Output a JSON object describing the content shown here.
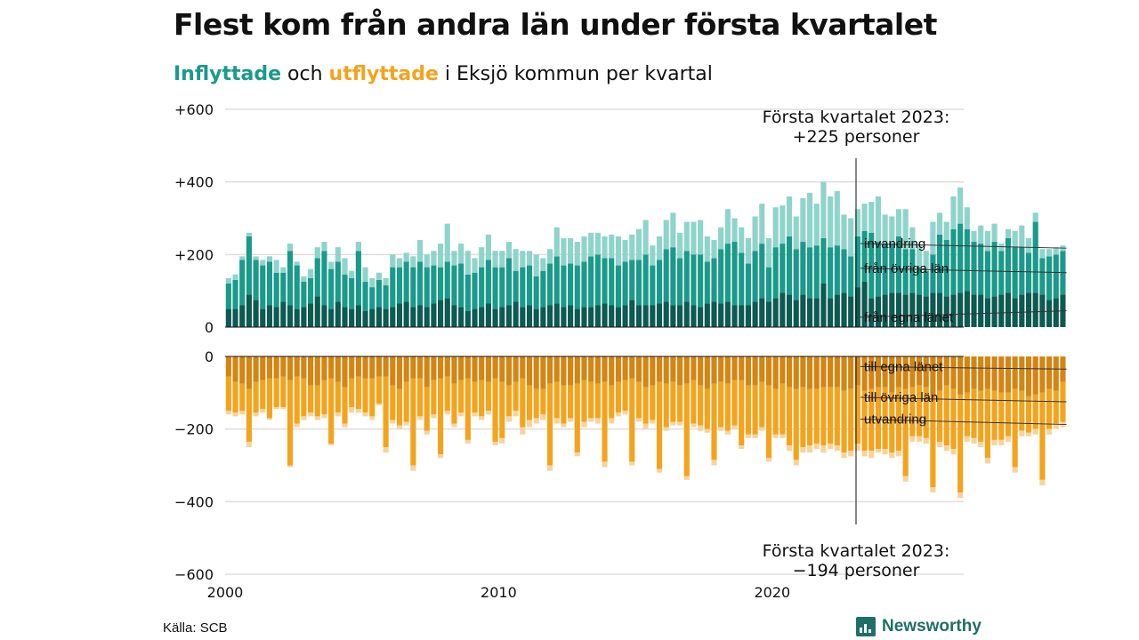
{
  "title": "Flest kom från andra län under första kvartalet",
  "subtitle": {
    "in_word": "Inflyttade",
    "and_word": "och",
    "out_word": "utflyttade",
    "rest": "i Eksjö kommun per kvartal"
  },
  "source": "Källa: SCB",
  "brand": "Newsworthy",
  "colors": {
    "in_own": "#0d5a52",
    "in_other": "#1a9a8a",
    "immigration": "#8fd4cb",
    "out_own": "#d48512",
    "out_other": "#f4a31c",
    "emigration": "#f7d49c",
    "grid": "#dddddd",
    "brand": "#1f6f66"
  },
  "annotations": {
    "top": [
      "Första kvartalet 2023:",
      "+225 personer"
    ],
    "bottom": [
      "Första kvartalet 2023:",
      "−194 personer"
    ]
  },
  "chart_data": {
    "type": "bar",
    "stacked": true,
    "diverging": true,
    "x_start": 2000,
    "x_step": 0.25,
    "xlim": [
      2000,
      2027
    ],
    "x_ticks": [
      2000,
      2010,
      2020
    ],
    "x_tick_labels": [
      "2000",
      "2010",
      "2020"
    ],
    "top_panel": {
      "ylim": [
        0,
        600
      ],
      "y_ticks": [
        0,
        200,
        400,
        600
      ],
      "y_tick_labels": [
        "0",
        "+200",
        "+400",
        "+600"
      ],
      "series": [
        {
          "name": "från egna länet",
          "label_y": 15,
          "values": [
            50,
            50,
            60,
            90,
            75,
            50,
            60,
            55,
            70,
            60,
            50,
            55,
            65,
            85,
            60,
            50,
            70,
            55,
            50,
            60,
            45,
            50,
            55,
            50,
            55,
            65,
            70,
            55,
            60,
            55,
            65,
            75,
            80,
            60,
            55,
            45,
            50,
            55,
            65,
            50,
            55,
            60,
            70,
            55,
            60,
            50,
            55,
            60,
            65,
            55,
            60,
            50,
            55,
            55,
            60,
            65,
            60,
            55,
            60,
            75,
            60,
            60,
            60,
            65,
            70,
            60,
            60,
            70,
            60,
            55,
            65,
            70,
            65,
            70,
            60,
            60,
            60,
            70,
            80,
            70,
            80,
            95,
            90,
            75,
            90,
            80,
            80,
            120,
            80,
            90,
            95,
            85,
            110,
            125,
            80,
            85,
            90,
            95,
            95,
            90,
            95,
            90,
            85,
            95,
            95,
            85,
            90,
            95,
            100,
            90,
            90,
            80,
            85,
            90,
            95,
            80,
            90,
            95,
            95,
            90,
            75,
            80,
            90
          ]
        },
        {
          "name": "från övriga län",
          "label_y": 150,
          "values": [
            70,
            80,
            125,
            160,
            110,
            120,
            120,
            95,
            80,
            150,
            120,
            70,
            70,
            105,
            150,
            110,
            110,
            90,
            85,
            150,
            80,
            60,
            75,
            65,
            110,
            100,
            110,
            110,
            120,
            110,
            105,
            90,
            100,
            110,
            120,
            100,
            100,
            110,
            120,
            115,
            110,
            130,
            85,
            110,
            110,
            90,
            100,
            115,
            130,
            115,
            115,
            120,
            125,
            140,
            140,
            125,
            130,
            115,
            120,
            110,
            125,
            140,
            110,
            120,
            145,
            160,
            130,
            140,
            140,
            145,
            115,
            120,
            150,
            160,
            175,
            145,
            115,
            140,
            150,
            95,
            140,
            135,
            160,
            140,
            145,
            140,
            145,
            125,
            140,
            135,
            120,
            110,
            140,
            140,
            180,
            150,
            140,
            135,
            155,
            125,
            120,
            75,
            70,
            105,
            160,
            155,
            180,
            190,
            170,
            145,
            140,
            130,
            150,
            120,
            150,
            140,
            130,
            110,
            195,
            100,
            120,
            120,
            120
          ]
        },
        {
          "name": "invandring",
          "label_y": 218,
          "values": [
            15,
            15,
            10,
            10,
            10,
            15,
            15,
            35,
            15,
            20,
            10,
            15,
            25,
            30,
            25,
            20,
            40,
            45,
            20,
            25,
            40,
            25,
            20,
            20,
            35,
            25,
            25,
            30,
            60,
            35,
            40,
            65,
            105,
            40,
            55,
            65,
            40,
            55,
            70,
            45,
            45,
            45,
            60,
            45,
            40,
            60,
            35,
            40,
            80,
            75,
            70,
            65,
            70,
            65,
            60,
            60,
            65,
            80,
            60,
            70,
            85,
            95,
            55,
            65,
            80,
            95,
            70,
            80,
            90,
            95,
            70,
            50,
            60,
            95,
            65,
            70,
            70,
            95,
            110,
            80,
            110,
            105,
            110,
            90,
            120,
            150,
            115,
            155,
            140,
            150,
            95,
            105,
            75,
            75,
            85,
            125,
            80,
            75,
            75,
            110,
            60,
            60,
            55,
            90,
            60,
            50,
            90,
            100,
            60,
            30,
            50,
            55,
            50,
            20,
            25,
            45,
            60,
            40,
            25,
            25,
            20,
            20,
            15
          ]
        }
      ]
    },
    "bottom_panel": {
      "ylim": [
        -600,
        0
      ],
      "y_ticks": [
        0,
        -200,
        -400,
        -600
      ],
      "y_tick_labels": [
        "0",
        "−200",
        "−400",
        "−600"
      ],
      "series": [
        {
          "name": "till egna länet",
          "label_y": -40,
          "values": [
            55,
            70,
            75,
            90,
            70,
            65,
            60,
            60,
            55,
            65,
            55,
            60,
            80,
            80,
            65,
            60,
            70,
            85,
            60,
            55,
            60,
            60,
            55,
            55,
            80,
            90,
            70,
            60,
            60,
            85,
            65,
            60,
            55,
            75,
            65,
            60,
            70,
            65,
            70,
            60,
            70,
            80,
            70,
            60,
            80,
            90,
            90,
            75,
            70,
            80,
            80,
            75,
            65,
            70,
            75,
            70,
            80,
            70,
            65,
            60,
            70,
            85,
            80,
            70,
            75,
            70,
            80,
            75,
            65,
            80,
            90,
            75,
            70,
            75,
            65,
            65,
            80,
            80,
            70,
            80,
            90,
            75,
            85,
            90,
            85,
            90,
            90,
            85,
            85,
            85,
            95,
            90,
            80,
            95,
            90,
            85,
            85,
            100,
            85,
            90,
            85,
            80,
            85,
            110,
            95,
            80,
            90,
            105,
            100,
            90,
            95,
            90,
            95,
            100,
            100,
            90,
            95,
            110,
            105,
            100,
            90,
            95,
            70
          ]
        },
        {
          "name": "till övriga län",
          "label_y": -125,
          "values": [
            95,
            85,
            75,
            145,
            85,
            80,
            110,
            80,
            85,
            235,
            130,
            105,
            75,
            85,
            95,
            180,
            85,
            100,
            80,
            90,
            95,
            105,
            75,
            195,
            95,
            100,
            110,
            240,
            105,
            120,
            95,
            210,
            95,
            110,
            90,
            170,
            85,
            100,
            80,
            175,
            155,
            85,
            80,
            135,
            95,
            80,
            70,
            225,
            100,
            105,
            90,
            190,
            115,
            100,
            95,
            220,
            90,
            85,
            85,
            230,
            100,
            100,
            95,
            240,
            120,
            110,
            100,
            255,
            120,
            110,
            110,
            210,
            125,
            130,
            125,
            180,
            135,
            135,
            125,
            200,
            125,
            140,
            160,
            195,
            165,
            155,
            150,
            160,
            155,
            160,
            170,
            170,
            160,
            165,
            170,
            170,
            170,
            165,
            175,
            240,
            135,
            140,
            140,
            250,
            140,
            165,
            165,
            270,
            120,
            135,
            140,
            190,
            135,
            130,
            120,
            215,
            110,
            100,
            95,
            240,
            110,
            90,
            110
          ]
        },
        {
          "name": "utvandring",
          "label_y": -185,
          "values": [
            10,
            10,
            10,
            15,
            10,
            10,
            5,
            5,
            5,
            5,
            10,
            10,
            10,
            10,
            10,
            5,
            10,
            10,
            15,
            10,
            10,
            10,
            5,
            15,
            10,
            10,
            10,
            15,
            10,
            10,
            10,
            10,
            10,
            10,
            10,
            10,
            10,
            10,
            10,
            10,
            15,
            15,
            15,
            20,
            20,
            15,
            15,
            15,
            15,
            10,
            10,
            10,
            15,
            10,
            15,
            15,
            15,
            10,
            10,
            10,
            10,
            15,
            10,
            10,
            10,
            10,
            10,
            10,
            10,
            15,
            10,
            15,
            10,
            10,
            10,
            10,
            10,
            10,
            10,
            10,
            10,
            10,
            15,
            15,
            15,
            20,
            15,
            20,
            15,
            15,
            15,
            15,
            20,
            15,
            20,
            10,
            15,
            15,
            15,
            15,
            15,
            15,
            15,
            15,
            15,
            15,
            15,
            15,
            15,
            15,
            15,
            15,
            15,
            15,
            15,
            15,
            15,
            10,
            15,
            15,
            15,
            15,
            15
          ]
        }
      ]
    }
  }
}
